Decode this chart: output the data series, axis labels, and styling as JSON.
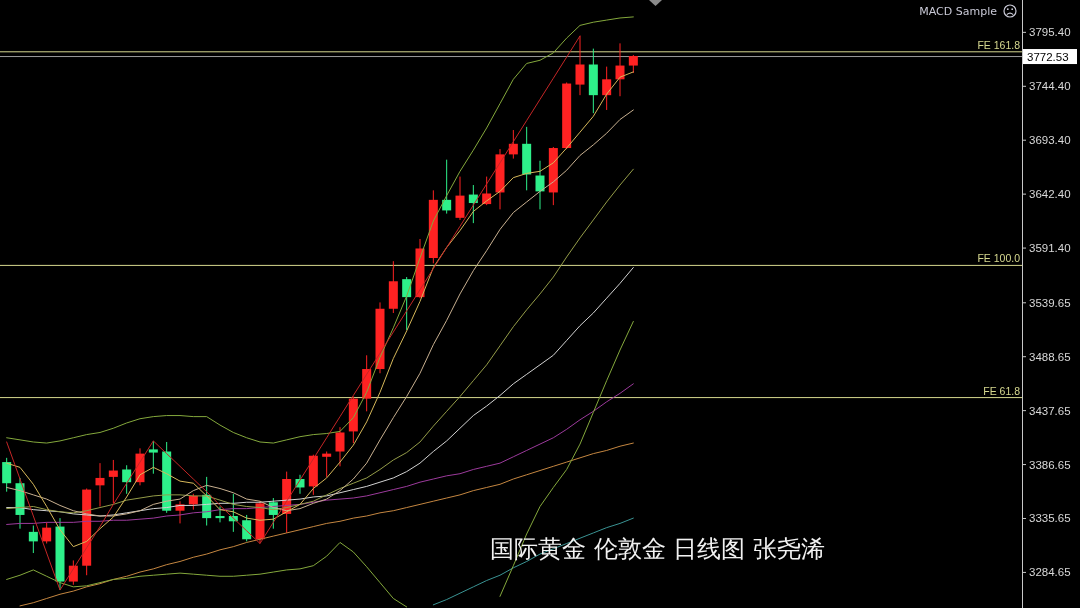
{
  "chart_data": {
    "type": "candlestick",
    "categories": [
      null,
      null,
      null,
      null,
      null,
      null,
      null,
      null,
      null,
      null,
      null,
      null,
      null,
      null,
      null,
      null,
      null,
      null,
      null,
      null,
      null,
      null,
      null,
      null,
      null,
      null,
      null,
      null,
      null,
      null,
      null,
      null,
      null,
      null,
      null,
      null,
      null,
      null,
      null,
      null,
      null,
      null,
      null,
      null,
      null,
      null,
      null,
      null
    ],
    "ohlc": [
      [
        3389,
        3393,
        3361,
        3369
      ],
      [
        3369,
        3374,
        3326,
        3339
      ],
      [
        3323,
        3329,
        3303,
        3314
      ],
      [
        3314,
        3332,
        3312,
        3327
      ],
      [
        3328,
        3336,
        3268,
        3276
      ],
      [
        3276,
        3296,
        3273,
        3291
      ],
      [
        3291,
        3364,
        3282,
        3363
      ],
      [
        3367,
        3388,
        3347,
        3374
      ],
      [
        3375,
        3391,
        3350,
        3381
      ],
      [
        3382,
        3386,
        3359,
        3370
      ],
      [
        3370,
        3402,
        3367,
        3397
      ],
      [
        3401,
        3409,
        3378,
        3398
      ],
      [
        3399,
        3408,
        3341,
        3343
      ],
      [
        3343,
        3352,
        3331,
        3349
      ],
      [
        3349,
        3359,
        3344,
        3357
      ],
      [
        3358,
        3375,
        3329,
        3336
      ],
      [
        3338,
        3347,
        3332,
        3336
      ],
      [
        3338,
        3359,
        3323,
        3333
      ],
      [
        3334,
        3339,
        3314,
        3316
      ],
      [
        3316,
        3352,
        3312,
        3350
      ],
      [
        3351,
        3355,
        3326,
        3339
      ],
      [
        3340,
        3380,
        3322,
        3373
      ],
      [
        3373,
        3377,
        3359,
        3365
      ],
      [
        3366,
        3396,
        3358,
        3395
      ],
      [
        3394,
        3399,
        3375,
        3397
      ],
      [
        3399,
        3422,
        3385,
        3417
      ],
      [
        3418,
        3451,
        3407,
        3449
      ],
      [
        3449,
        3490,
        3437,
        3477
      ],
      [
        3477,
        3540,
        3473,
        3534
      ],
      [
        3534,
        3579,
        3530,
        3560
      ],
      [
        3562,
        3564,
        3514,
        3545
      ],
      [
        3545,
        3600,
        3544,
        3591
      ],
      [
        3582,
        3646,
        3577,
        3637
      ],
      [
        3637,
        3675,
        3624,
        3627
      ],
      [
        3620,
        3659,
        3618,
        3641
      ],
      [
        3642,
        3651,
        3615,
        3634
      ],
      [
        3633,
        3659,
        3632,
        3643
      ],
      [
        3644,
        3685,
        3628,
        3680
      ],
      [
        3680,
        3703,
        3676,
        3690
      ],
      [
        3690,
        3706,
        3646,
        3661
      ],
      [
        3660,
        3674,
        3628,
        3645
      ],
      [
        3644,
        3687,
        3632,
        3686
      ],
      [
        3686,
        3748,
        3685,
        3747
      ],
      [
        3746,
        3792,
        3736,
        3765
      ],
      [
        3765,
        3780,
        3719,
        3736
      ],
      [
        3736,
        3763,
        3722,
        3751
      ],
      [
        3751,
        3785,
        3735,
        3764
      ],
      [
        3764,
        3774,
        3757,
        3773
      ]
    ],
    "colors": [
      "#2ef08a",
      "#2ef08a",
      "#2ef08a",
      "#ff2222",
      "#2ef08a",
      "#ff2222",
      "#ff2222",
      "#ff2222",
      "#ff2222",
      "#2ef08a",
      "#ff2222",
      "#2ef08a",
      "#2ef08a",
      "#ff2222",
      "#ff2222",
      "#2ef08a",
      "#2ef08a",
      "#2ef08a",
      "#2ef08a",
      "#ff2222",
      "#2ef08a",
      "#ff2222",
      "#2ef08a",
      "#ff2222",
      "#ff2222",
      "#ff2222",
      "#ff2222",
      "#ff2222",
      "#ff2222",
      "#ff2222",
      "#2ef08a",
      "#ff2222",
      "#ff2222",
      "#2ef08a",
      "#ff2222",
      "#2ef08a",
      "#ff2222",
      "#ff2222",
      "#ff2222",
      "#2ef08a",
      "#2ef08a",
      "#ff2222",
      "#ff2222",
      "#ff2222",
      "#2ef08a",
      "#ff2222",
      "#ff2222",
      "#ff2222"
    ],
    "series": [
      {
        "type": "line",
        "color": "#3a9494",
        "values": [
          null,
          null,
          null,
          null,
          null,
          null,
          null,
          null,
          null,
          null,
          null,
          null,
          null,
          null,
          null,
          null,
          null,
          null,
          null,
          null,
          null,
          null,
          null,
          null,
          null,
          null,
          null,
          null,
          null,
          null,
          null,
          null,
          3254,
          3259,
          3265,
          3271,
          3277,
          3282,
          3289,
          3295,
          3302,
          3307,
          3312,
          3317,
          3322,
          3327,
          3331,
          3336
        ]
      },
      {
        "type": "line",
        "color": "#c48640",
        "values": [
          null,
          3253,
          3256,
          3260,
          3264,
          3267,
          3271,
          3274,
          3278,
          3281,
          3285,
          3288,
          3292,
          3295,
          3299,
          3302,
          3306,
          3309,
          3313,
          3316,
          3319,
          3322,
          3325,
          3328,
          3331,
          3333,
          3336,
          3338,
          3341,
          3343,
          3346,
          3349,
          3352,
          3355,
          3358,
          3362,
          3365,
          3368,
          3373,
          3377,
          3381,
          3385,
          3389,
          3393,
          3397,
          3400,
          3404,
          3407
        ]
      },
      {
        "type": "line",
        "color": "#9c3a9c",
        "values": [
          3330,
          3331,
          3331,
          3332,
          3332,
          3332,
          3333,
          3333,
          3334,
          3334,
          3335,
          3336,
          3338,
          3339,
          3341,
          3342,
          3344,
          3345,
          3345,
          3346,
          3347,
          3348,
          3349,
          3351,
          3353,
          3354,
          3355,
          3357,
          3360,
          3363,
          3366,
          3370,
          3373,
          3376,
          3378,
          3382,
          3385,
          3388,
          3394,
          3400,
          3406,
          3412,
          3420,
          3429,
          3437,
          3446,
          3454,
          3463
        ]
      },
      {
        "type": "line",
        "color": "#d2d2d2",
        "values": [
          3346,
          3346,
          3344,
          3343,
          3342,
          3340,
          3339,
          3338,
          3339,
          3341,
          3343,
          3345,
          3346,
          3348,
          3348,
          3349,
          3350,
          3350,
          3351,
          3351,
          3352,
          3353,
          3354,
          3356,
          3357,
          3360,
          3363,
          3366,
          3370,
          3374,
          3380,
          3388,
          3399,
          3409,
          3421,
          3433,
          3442,
          3452,
          3463,
          3472,
          3481,
          3490,
          3504,
          3518,
          3530,
          3544,
          3558,
          3573
        ]
      },
      {
        "type": "line",
        "color": "#84a83c",
        "values": [
          3278,
          3282,
          3287,
          3281,
          3275,
          3271,
          3272,
          3275,
          3278,
          3279,
          3281,
          3282,
          3283,
          3284,
          3283,
          3282,
          3281,
          3281,
          3282,
          3283,
          3285,
          3287,
          3288,
          3291,
          3300,
          3313,
          3304,
          3290,
          3275,
          3260,
          3252,
          null,
          null,
          null,
          null,
          null,
          null,
          3262,
          3291,
          3321,
          3347,
          3365,
          3382,
          3406,
          3436,
          3466,
          3495,
          3522
        ]
      },
      {
        "type": "line",
        "color": "#949c48",
        "values": [
          3345,
          3346,
          3347,
          3344,
          3342,
          3341,
          3343,
          3346,
          3349,
          3353,
          3355,
          3357,
          3358,
          3358,
          3357,
          3357,
          3353,
          3349,
          3347,
          3346,
          3344,
          3346,
          3349,
          3352,
          3358,
          3364,
          3369,
          3374,
          3382,
          3391,
          3398,
          3408,
          3423,
          3437,
          3451,
          3466,
          3481,
          3499,
          3517,
          3533,
          3548,
          3564,
          3583,
          3601,
          3618,
          3635,
          3651,
          3666
        ]
      },
      {
        "type": "line",
        "color": "#84a83c",
        "values": [
          3412,
          3410,
          3408,
          3407,
          3409,
          3412,
          3415,
          3417,
          3421,
          3426,
          3430,
          3432,
          3433,
          3433,
          3432,
          3432,
          3424,
          3417,
          3412,
          3408,
          3407,
          3410,
          3413,
          3415,
          3416,
          3418,
          3431,
          3455,
          3488,
          3516,
          3546,
          3582,
          3617,
          3641,
          3664,
          3684,
          3705,
          3728,
          3751,
          3766,
          3769,
          3776,
          3790,
          3802,
          3805,
          3807,
          3809,
          3810
        ]
      },
      {
        "type": "line",
        "color": "#c8b090",
        "values": [
          3365,
          3362,
          3358,
          3354,
          3348,
          3343,
          3340,
          3338,
          3338,
          3340,
          3343,
          3349,
          3352,
          3354,
          3362,
          3367,
          3364,
          3360,
          3354,
          3352,
          3346,
          3343,
          3345,
          3350,
          3354,
          3362,
          3373,
          3388,
          3410,
          3431,
          3451,
          3473,
          3500,
          3523,
          3548,
          3570,
          3589,
          3609,
          3625,
          3635,
          3645,
          3654,
          3665,
          3679,
          3689,
          3700,
          3713,
          3722
        ]
      },
      {
        "type": "line",
        "color": "#d6b85a",
        "values": [
          3388,
          3384,
          3368,
          3347,
          3325,
          3309,
          3314,
          3326,
          3337,
          3356,
          3377,
          3384,
          3378,
          3371,
          3369,
          3357,
          3344,
          3342,
          3336,
          3334,
          3335,
          3342,
          3349,
          3364,
          3374,
          3389,
          3405,
          3427,
          3455,
          3487,
          3513,
          3541,
          3573,
          3592,
          3608,
          3626,
          3636,
          3645,
          3658,
          3662,
          3664,
          3672,
          3686,
          3701,
          3716,
          3737,
          3753,
          3758
        ]
      },
      {
        "type": "line",
        "color": "#c42626",
        "values": [
          3408,
          3373,
          3338,
          3303,
          3268,
          3288,
          3308,
          3328,
          3349,
          3369,
          3389,
          3409,
          3397,
          3385,
          3373,
          3361,
          3348,
          3336,
          3324,
          3312,
          3332,
          3352,
          3372,
          3392,
          3412,
          3432,
          3452,
          3472,
          3492,
          3512,
          3532,
          3552,
          3572,
          3592,
          3612,
          3632,
          3652,
          3672,
          3692,
          3712,
          3732,
          3752,
          3772,
          3792,
          null,
          null,
          null,
          null
        ]
      }
    ],
    "ylim": [
      3251,
      3826
    ],
    "yticks": [
      {
        "value": 3795.4,
        "label": "3795.40"
      },
      {
        "value": 3744.4,
        "label": "3744.40"
      },
      {
        "value": 3693.4,
        "label": "3693.40"
      },
      {
        "value": 3642.4,
        "label": "3642.40"
      },
      {
        "value": 3591.4,
        "label": "3591.40"
      },
      3539.65,
      3488.65,
      3437.65,
      3386.65,
      3335.65,
      3284.65
    ],
    "tick_labels": "y",
    "ref_lines": [
      {
        "axis": "y",
        "value": 3777,
        "label": "FE 161.8",
        "color": "#d6d88f"
      },
      {
        "axis": "y",
        "value": 3575,
        "label": "FE 100.0",
        "color": "#d6d88f"
      },
      {
        "axis": "y",
        "value": 3450,
        "label": "FE 61.8",
        "color": "#d6d88f"
      },
      {
        "axis": "y",
        "value": 3772.53,
        "label": "3772.53",
        "color": "#9a9a9a"
      }
    ],
    "annotations": [
      "MACD Sample",
      "国际黄金 伦敦金 日线图 张尧浠"
    ]
  }
}
